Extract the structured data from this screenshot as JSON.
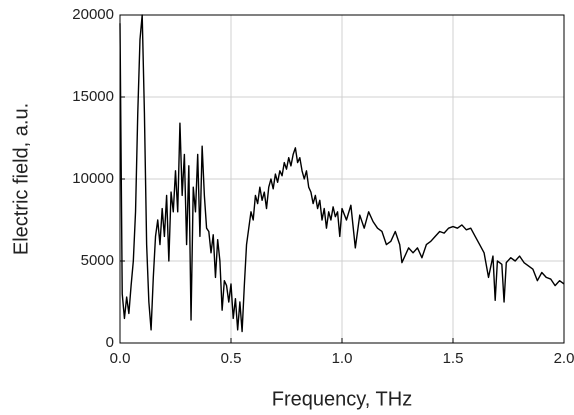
{
  "chart_data": {
    "type": "line",
    "xlabel": "Frequency, THz",
    "ylabel": "Electric field, a.u.",
    "x": [
      0.0,
      0.01,
      0.02,
      0.03,
      0.04,
      0.05,
      0.06,
      0.07,
      0.08,
      0.09,
      0.1,
      0.11,
      0.12,
      0.13,
      0.14,
      0.15,
      0.16,
      0.17,
      0.18,
      0.19,
      0.2,
      0.21,
      0.22,
      0.23,
      0.24,
      0.25,
      0.26,
      0.27,
      0.28,
      0.29,
      0.3,
      0.31,
      0.32,
      0.33,
      0.34,
      0.35,
      0.36,
      0.37,
      0.38,
      0.39,
      0.4,
      0.41,
      0.42,
      0.43,
      0.44,
      0.45,
      0.46,
      0.47,
      0.48,
      0.49,
      0.5,
      0.51,
      0.52,
      0.53,
      0.54,
      0.55,
      0.56,
      0.57,
      0.58,
      0.59,
      0.6,
      0.61,
      0.62,
      0.63,
      0.64,
      0.65,
      0.66,
      0.67,
      0.68,
      0.69,
      0.7,
      0.71,
      0.72,
      0.73,
      0.74,
      0.75,
      0.76,
      0.77,
      0.78,
      0.79,
      0.8,
      0.81,
      0.82,
      0.83,
      0.84,
      0.85,
      0.86,
      0.87,
      0.88,
      0.89,
      0.9,
      0.91,
      0.92,
      0.93,
      0.94,
      0.95,
      0.96,
      0.97,
      0.98,
      0.99,
      1.0,
      1.02,
      1.04,
      1.06,
      1.08,
      1.1,
      1.12,
      1.14,
      1.16,
      1.18,
      1.2,
      1.22,
      1.24,
      1.26,
      1.27,
      1.28,
      1.3,
      1.32,
      1.34,
      1.36,
      1.38,
      1.4,
      1.42,
      1.44,
      1.46,
      1.48,
      1.5,
      1.52,
      1.54,
      1.56,
      1.58,
      1.6,
      1.62,
      1.64,
      1.66,
      1.68,
      1.69,
      1.7,
      1.72,
      1.73,
      1.74,
      1.76,
      1.78,
      1.8,
      1.82,
      1.84,
      1.86,
      1.88,
      1.9,
      1.92,
      1.94,
      1.96,
      1.98,
      2.0
    ],
    "values": [
      19500,
      3000,
      1500,
      2800,
      1800,
      3500,
      5000,
      8000,
      14000,
      18500,
      20000,
      14000,
      6000,
      2500,
      800,
      4000,
      6500,
      7500,
      6000,
      8200,
      6500,
      9000,
      5000,
      9200,
      8000,
      10500,
      8000,
      13400,
      9000,
      11500,
      6000,
      10800,
      1400,
      9500,
      8000,
      11500,
      6500,
      12000,
      9000,
      7000,
      6800,
      5500,
      6600,
      4000,
      6300,
      5000,
      2000,
      3800,
      3500,
      2500,
      3600,
      1500,
      2700,
      800,
      2500,
      700,
      3500,
      6000,
      7000,
      8000,
      7500,
      9000,
      8500,
      9500,
      8700,
      9200,
      8200,
      9500,
      10000,
      9400,
      10300,
      9800,
      10500,
      10200,
      11000,
      10600,
      11300,
      10800,
      11500,
      11900,
      11000,
      11300,
      10500,
      10000,
      10500,
      9500,
      9200,
      8500,
      9000,
      8200,
      8700,
      7500,
      8200,
      7000,
      8000,
      7500,
      8300,
      7700,
      8000,
      6500,
      8200,
      7500,
      8400,
      5800,
      7800,
      7000,
      8000,
      7400,
      7000,
      6800,
      6000,
      6200,
      6800,
      6000,
      4900,
      5200,
      5800,
      5500,
      5800,
      5200,
      6000,
      6200,
      6500,
      6800,
      6700,
      7000,
      7100,
      7000,
      7200,
      6900,
      7000,
      6500,
      6000,
      5500,
      4000,
      5300,
      2600,
      5000,
      4800,
      2500,
      4900,
      5200,
      5000,
      5300,
      4900,
      4700,
      4500,
      3800,
      4300,
      4000,
      3900,
      3500,
      3800,
      3600
    ],
    "color": "#000000",
    "xlim": [
      0,
      2
    ],
    "ylim": [
      0,
      20000
    ],
    "xticks": [
      {
        "value": 0,
        "label": "0.0"
      },
      0.5,
      {
        "value": 1,
        "label": "1.0"
      },
      1.5,
      {
        "value": 2,
        "label": "2.0"
      }
    ],
    "yticks": [
      0,
      5000,
      10000,
      15000,
      20000
    ],
    "grid": true
  }
}
